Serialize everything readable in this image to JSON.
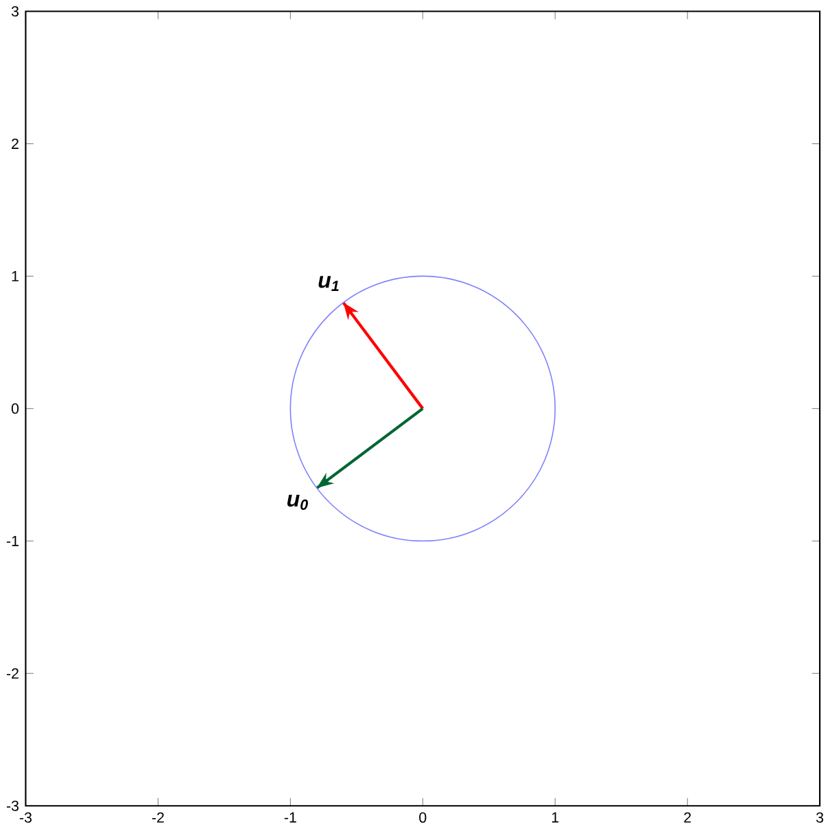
{
  "chart_data": {
    "type": "line",
    "xlim": [
      -3,
      3
    ],
    "ylim": [
      -3,
      3
    ],
    "xticks": [
      -3,
      -2,
      -1,
      0,
      1,
      2,
      3
    ],
    "yticks": [
      -3,
      -2,
      -1,
      0,
      1,
      2,
      3
    ],
    "marker": "none",
    "series": [
      {
        "name": "u$_{1}$",
        "color": "#ff0000",
        "x": [
          0,
          -0.6
        ],
        "values": [
          0,
          0.8
        ]
      },
      {
        "name": "u$_{0}$",
        "color": "#006633",
        "x": [
          0,
          -0.8
        ],
        "values": [
          0,
          -0.6
        ]
      }
    ]
  }
}
